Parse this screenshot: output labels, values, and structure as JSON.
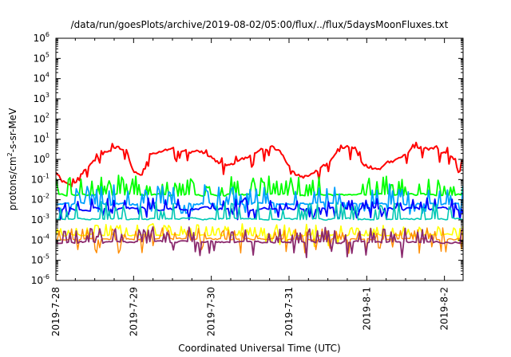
{
  "chart_data": {
    "type": "line",
    "title": "/data/run/goesPlots/archive/2019-08-02/05:00/flux/../flux/5daysMoonFluxes.txt",
    "xlabel": "Coordinated Universal Time (UTC)",
    "ylabel": {
      "prefix": "protons/cm",
      "superscript": "2",
      "suffix": "-s-sr-MeV"
    },
    "y_scale": "log",
    "ylim_exponents": [
      -6,
      6
    ],
    "y_ticks": [
      {
        "base": "10",
        "exp": "-6"
      },
      {
        "base": "10",
        "exp": "-5"
      },
      {
        "base": "10",
        "exp": "-4"
      },
      {
        "base": "10",
        "exp": "-3"
      },
      {
        "base": "10",
        "exp": "-2"
      },
      {
        "base": "10",
        "exp": "-1"
      },
      {
        "base": "10",
        "exp": "0"
      },
      {
        "base": "10",
        "exp": "1"
      },
      {
        "base": "10",
        "exp": "2"
      },
      {
        "base": "10",
        "exp": "3"
      },
      {
        "base": "10",
        "exp": "4"
      },
      {
        "base": "10",
        "exp": "5"
      },
      {
        "base": "10",
        "exp": "6"
      }
    ],
    "xlim_days": [
      0,
      5.24
    ],
    "x_ticks": [
      {
        "label": "2019-7-28",
        "day": 0
      },
      {
        "label": "2019-7-29",
        "day": 1
      },
      {
        "label": "2019-7-30",
        "day": 2
      },
      {
        "label": "2019-7-31",
        "day": 3
      },
      {
        "label": "2019-8-1",
        "day": 4
      },
      {
        "label": "2019-8-2",
        "day": 5
      }
    ],
    "grid": false,
    "legend": "none",
    "series": [
      {
        "color": "#ff0000",
        "base_log": [
          [
            0,
            -0.6
          ],
          [
            0.08,
            -1.0
          ],
          [
            0.2,
            -1.3
          ],
          [
            0.35,
            -0.6
          ],
          [
            0.5,
            0.0
          ],
          [
            0.62,
            0.4
          ],
          [
            0.75,
            0.6
          ],
          [
            0.9,
            0.5
          ],
          [
            1.0,
            -0.6
          ],
          [
            1.1,
            -0.9
          ],
          [
            1.2,
            0.2
          ],
          [
            1.35,
            0.4
          ],
          [
            1.5,
            0.5
          ],
          [
            1.65,
            0.4
          ],
          [
            1.8,
            0.5
          ],
          [
            1.95,
            0.2
          ],
          [
            2.1,
            -0.2
          ],
          [
            2.2,
            -0.3
          ],
          [
            2.35,
            -0.2
          ],
          [
            2.5,
            0.1
          ],
          [
            2.65,
            0.5
          ],
          [
            2.75,
            0.6
          ],
          [
            2.85,
            0.5
          ],
          [
            2.95,
            0.0
          ],
          [
            3.05,
            -0.6
          ],
          [
            3.15,
            -0.9
          ],
          [
            3.25,
            -0.8
          ],
          [
            3.35,
            -0.6
          ],
          [
            3.5,
            -0.2
          ],
          [
            3.6,
            0.2
          ],
          [
            3.72,
            0.6
          ],
          [
            3.85,
            0.5
          ],
          [
            3.95,
            -0.1
          ],
          [
            4.05,
            -0.5
          ],
          [
            4.15,
            -0.4
          ],
          [
            4.3,
            -0.2
          ],
          [
            4.42,
            0.0
          ],
          [
            4.55,
            0.4
          ],
          [
            4.65,
            0.6
          ],
          [
            4.8,
            0.5
          ],
          [
            4.9,
            0.55
          ],
          [
            5.0,
            0.3
          ],
          [
            5.12,
            0.0
          ],
          [
            5.24,
            -0.2
          ]
        ],
        "noise": 0.18,
        "spike_prob": 0.05,
        "spike_amp": 0.3,
        "dip_prob": 0.08,
        "dip_amp": 0.5,
        "samples": 260,
        "seed": 11,
        "width": 2
      },
      {
        "color": "#00ff00",
        "base_log": [
          [
            0,
            -1.75
          ],
          [
            5.24,
            -1.75
          ]
        ],
        "noise": 0.08,
        "spike_prob": 0.28,
        "spike_amp": 0.75,
        "dip_prob": 0.0,
        "dip_amp": 0.0,
        "samples": 260,
        "seed": 22,
        "width": 1.8
      },
      {
        "color": "#00a0ff",
        "base_log": [
          [
            0,
            -2.2
          ],
          [
            5.24,
            -2.2
          ]
        ],
        "noise": 0.1,
        "spike_prob": 0.22,
        "spike_amp": 0.8,
        "dip_prob": 0.1,
        "dip_amp": 0.5,
        "samples": 260,
        "seed": 33,
        "width": 1.8
      },
      {
        "color": "#0000ff",
        "base_log": [
          [
            0,
            -2.45
          ],
          [
            5.24,
            -2.45
          ]
        ],
        "noise": 0.12,
        "spike_prob": 0.18,
        "spike_amp": 0.45,
        "dip_prob": 0.12,
        "dip_amp": 0.45,
        "samples": 260,
        "seed": 44,
        "width": 1.8
      },
      {
        "color": "#00c8b4",
        "base_log": [
          [
            0,
            -2.95
          ],
          [
            5.24,
            -2.95
          ]
        ],
        "noise": 0.07,
        "spike_prob": 0.18,
        "spike_amp": 0.7,
        "dip_prob": 0.0,
        "dip_amp": 0.0,
        "samples": 260,
        "seed": 55,
        "width": 1.6
      },
      {
        "color": "#ffff00",
        "base_log": [
          [
            0,
            -3.75
          ],
          [
            5.24,
            -3.75
          ]
        ],
        "noise": 0.08,
        "spike_prob": 0.22,
        "spike_amp": 0.45,
        "dip_prob": 0.04,
        "dip_amp": 0.5,
        "samples": 260,
        "seed": 66,
        "width": 1.6
      },
      {
        "color": "#ff8c00",
        "base_log": [
          [
            0,
            -3.95
          ],
          [
            5.24,
            -3.95
          ]
        ],
        "noise": 0.08,
        "spike_prob": 0.22,
        "spike_amp": 0.45,
        "dip_prob": 0.05,
        "dip_amp": 0.6,
        "samples": 260,
        "seed": 77,
        "width": 1.4
      },
      {
        "color": "#8b2a6e",
        "base_log": [
          [
            0,
            -4.1
          ],
          [
            5.24,
            -4.1
          ]
        ],
        "noise": 0.08,
        "spike_prob": 0.25,
        "spike_amp": 0.6,
        "dip_prob": 0.05,
        "dip_amp": 0.7,
        "samples": 260,
        "seed": 88,
        "width": 1.8
      }
    ]
  }
}
